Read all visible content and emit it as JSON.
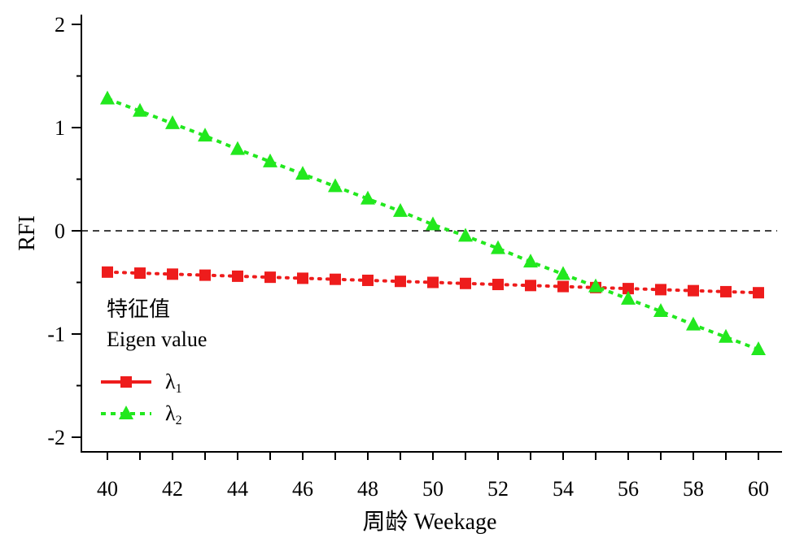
{
  "chart_data": {
    "type": "line",
    "title": "",
    "xlabel": "周龄 Weekage",
    "ylabel": "RFI",
    "x": [
      40,
      41,
      42,
      43,
      44,
      45,
      46,
      47,
      48,
      49,
      50,
      51,
      52,
      53,
      54,
      55,
      56,
      57,
      58,
      59,
      60
    ],
    "xlim": [
      39.2,
      60.7
    ],
    "ylim": [
      -2.2,
      2.1
    ],
    "x_ticks": [
      "40",
      "42",
      "44",
      "46",
      "48",
      "50",
      "52",
      "54",
      "56",
      "58",
      "60"
    ],
    "y_ticks": [
      "2",
      "1",
      "0",
      "-1",
      "-2"
    ],
    "reference_line": {
      "y": 0,
      "style": "dashed"
    },
    "grid": false,
    "legend": {
      "title_line1": "特征值",
      "title_line2": "Eigen value",
      "position": "lower-left",
      "entries": [
        {
          "symbol": "λ",
          "subscript": "1"
        },
        {
          "symbol": "λ",
          "subscript": "2"
        }
      ]
    },
    "series": [
      {
        "color": "#ee1c1c",
        "marker": "square",
        "line_style": "dotted",
        "values": [
          -0.4,
          -0.41,
          -0.42,
          -0.43,
          -0.44,
          -0.45,
          -0.46,
          -0.47,
          -0.48,
          -0.49,
          -0.5,
          -0.51,
          -0.52,
          -0.53,
          -0.54,
          -0.55,
          -0.56,
          -0.57,
          -0.58,
          -0.59,
          -0.6
        ]
      },
      {
        "color": "#22e81e",
        "marker": "triangle",
        "line_style": "dashed",
        "values": [
          1.28,
          1.16,
          1.04,
          0.92,
          0.79,
          0.67,
          0.55,
          0.43,
          0.31,
          0.19,
          0.06,
          -0.05,
          -0.17,
          -0.3,
          -0.42,
          -0.54,
          -0.66,
          -0.78,
          -0.91,
          -1.03,
          -1.15
        ]
      }
    ]
  }
}
